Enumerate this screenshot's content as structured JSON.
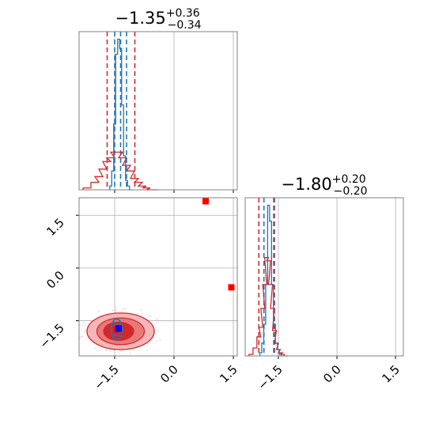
{
  "chart_data": [
    {
      "type": "histogram",
      "panel": "top-left (marginal of parameter 1)",
      "title": {
        "main": "−1.35",
        "sup": "+0.36",
        "sub": "−0.34"
      },
      "xlim": [
        -2.4,
        1.6
      ],
      "series": [
        {
          "name": "",
          "color": "#d62728",
          "x": [
            -2.2,
            -2.0,
            -1.9,
            -1.8,
            -1.7,
            -1.6,
            -1.5,
            -1.4,
            -1.3,
            -1.2,
            -1.1,
            -1.0,
            -0.9,
            -0.8,
            -0.7,
            -0.6,
            -0.5
          ],
          "values": [
            0.01,
            0.04,
            0.07,
            0.11,
            0.15,
            0.17,
            0.2,
            0.2,
            0.17,
            0.13,
            0.1,
            0.06,
            0.04,
            0.02,
            0.01,
            0.0,
            0.0
          ]
        },
        {
          "name": "",
          "color": "#1f77b4",
          "x": [
            -1.6,
            -1.55,
            -1.5,
            -1.45,
            -1.4,
            -1.35,
            -1.3,
            -1.25,
            -1.2,
            -1.15,
            -1.1
          ],
          "values": [
            0.02,
            0.1,
            0.35,
            0.72,
            0.8,
            0.75,
            0.45,
            0.18,
            0.05,
            0.02,
            0.0
          ]
        }
      ],
      "vlines": [
        {
          "x": -1.69,
          "color": "#d62728"
        },
        {
          "x": -0.99,
          "color": "#d62728"
        },
        {
          "x": -1.5,
          "color": "#1f77b4"
        },
        {
          "x": -1.35,
          "color": "#1f77b4"
        },
        {
          "x": -1.2,
          "color": "#1f77b4"
        }
      ],
      "grid": true
    },
    {
      "type": "histogram",
      "panel": "bottom-right (marginal of parameter 2)",
      "title": {
        "main": "−1.80",
        "sup": "+0.20",
        "sub": "−0.20"
      },
      "xlim": [
        -2.35,
        1.7
      ],
      "xticks": [
        "−1.5",
        "0.0",
        "1.5"
      ],
      "series": [
        {
          "name": "",
          "color": "#d62728",
          "x": [
            -2.2,
            -2.1,
            -2.0,
            -1.95,
            -1.9,
            -1.85,
            -1.8,
            -1.75,
            -1.7,
            -1.65,
            -1.6,
            -1.55,
            -1.5,
            -1.45,
            -1.4,
            -1.3
          ],
          "values": [
            0.01,
            0.05,
            0.12,
            0.18,
            0.3,
            0.45,
            0.62,
            0.6,
            0.45,
            0.3,
            0.16,
            0.08,
            0.04,
            0.02,
            0.01,
            0.0
          ]
        },
        {
          "name": "",
          "color": "#1f77b4",
          "x": [
            -1.95,
            -1.9,
            -1.85,
            -1.8,
            -1.75,
            -1.7,
            -1.65,
            -1.6,
            -1.55,
            -1.5,
            -1.45,
            -1.4
          ],
          "values": [
            0.02,
            0.08,
            0.2,
            0.45,
            0.95,
            0.85,
            0.45,
            0.2,
            0.08,
            0.04,
            0.01,
            0.0
          ]
        }
      ],
      "vlines": [
        {
          "x": -2.0,
          "color": "#d62728"
        },
        {
          "x": -1.6,
          "color": "#d62728"
        },
        {
          "x": -1.87,
          "color": "#1f77b4"
        },
        {
          "x": -1.62,
          "color": "#1f77b4"
        }
      ],
      "grid": true
    },
    {
      "type": "scatter",
      "panel": "bottom-left (2D joint of parameter 1 vs parameter 2)",
      "xlim": [
        -2.4,
        1.6
      ],
      "ylim": [
        -2.5,
        2.0
      ],
      "xticks": [
        "−1.5",
        "0.0",
        "1.5"
      ],
      "yticks": [
        "−1.5",
        "0.0",
        "1.5"
      ],
      "red_contours": [
        {
          "cx": -1.35,
          "cy": -1.8,
          "rx": 0.85,
          "ry": 0.52,
          "fill": "#f4b6b7"
        },
        {
          "cx": -1.35,
          "cy": -1.8,
          "rx": 0.6,
          "ry": 0.38,
          "fill": "#e8797b"
        },
        {
          "cx": -1.4,
          "cy": -1.8,
          "rx": 0.38,
          "ry": 0.26,
          "fill": "#d62728"
        }
      ],
      "blue_contours": [
        {
          "cx": -1.45,
          "cy": -1.75,
          "rx": 0.14,
          "ry": 0.3
        },
        {
          "cx": -1.45,
          "cy": -1.75,
          "rx": 0.08,
          "ry": 0.18
        }
      ],
      "red_markers": [
        {
          "x": 0.8,
          "y": 1.9
        },
        {
          "x": 1.45,
          "y": -0.55
        },
        {
          "x": -1.45,
          "y": -1.75
        }
      ],
      "blue_markers": [
        {
          "x": -1.4,
          "y": -1.72
        }
      ],
      "grid": true
    }
  ]
}
